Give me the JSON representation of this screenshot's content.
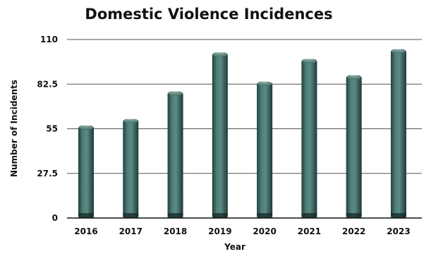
{
  "chart_data": {
    "type": "bar",
    "title": "Domestic Violence Incidences",
    "xlabel": "Year",
    "ylabel": "Number of Incidents",
    "categories": [
      "2016",
      "2017",
      "2018",
      "2019",
      "2020",
      "2021",
      "2022",
      "2023"
    ],
    "values": [
      57,
      61,
      78,
      102,
      84,
      98,
      88,
      104
    ],
    "ylim": [
      0,
      110
    ],
    "yticks": [
      "0",
      "27.5",
      "55",
      "82.5",
      "110"
    ],
    "grid": true,
    "legend": "none",
    "bar_color": "#3f6b66"
  }
}
